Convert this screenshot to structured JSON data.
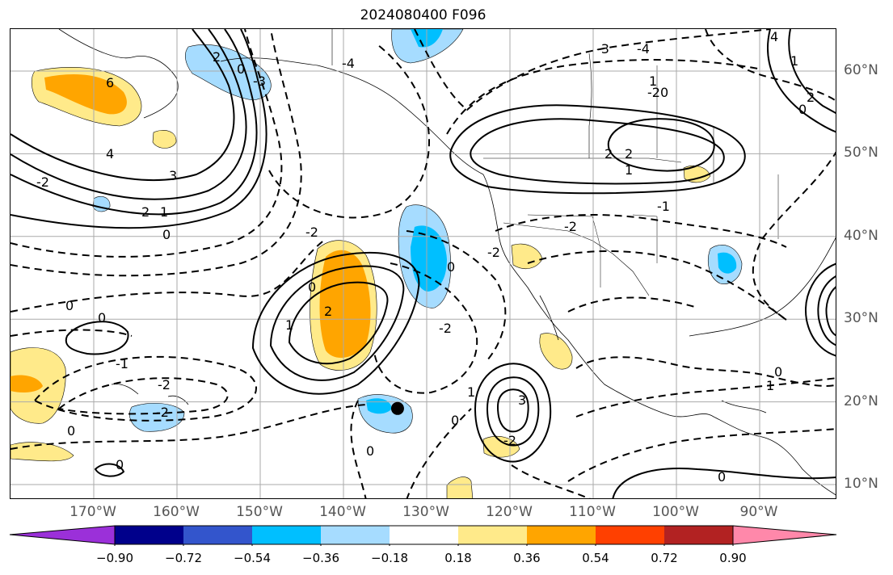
{
  "title": "2024080400 F096",
  "lon_labels": [
    {
      "text": "170°W",
      "lon": -170
    },
    {
      "text": "160°W",
      "lon": -160
    },
    {
      "text": "150°W",
      "lon": -150
    },
    {
      "text": "140°W",
      "lon": -140
    },
    {
      "text": "130°W",
      "lon": -130
    },
    {
      "text": "120°W",
      "lon": -120
    },
    {
      "text": "110°W",
      "lon": -110
    },
    {
      "text": "100°W",
      "lon": -100
    },
    {
      "text": "90°W",
      "lon": -90
    }
  ],
  "lat_labels": [
    {
      "text": "60°N",
      "lat": 60
    },
    {
      "text": "50°N",
      "lat": 50
    },
    {
      "text": "40°N",
      "lat": 40
    },
    {
      "text": "30°N",
      "lat": 30
    },
    {
      "text": "20°N",
      "lat": 20
    },
    {
      "text": "10°N",
      "lat": 10
    }
  ],
  "colorbar": {
    "ticks": [
      "−0.90",
      "−0.72",
      "−0.54",
      "−0.36",
      "−0.18",
      "0.18",
      "0.36",
      "0.54",
      "0.72",
      "0.90"
    ],
    "colors": [
      "#9b30d9",
      "#00008b",
      "#3355cc",
      "#00bfff",
      "#a6dcff",
      "#ffffff",
      "#ffea8a",
      "#ffa500",
      "#ff4000",
      "#b22222",
      "#ff88aa"
    ]
  },
  "contour_labels": [
    "0",
    "2",
    "4",
    "-2",
    "-1",
    "1",
    "3",
    "-3",
    "-4",
    "0",
    "2"
  ],
  "marker": {
    "lon": -133.5,
    "lat": 19.2
  }
}
